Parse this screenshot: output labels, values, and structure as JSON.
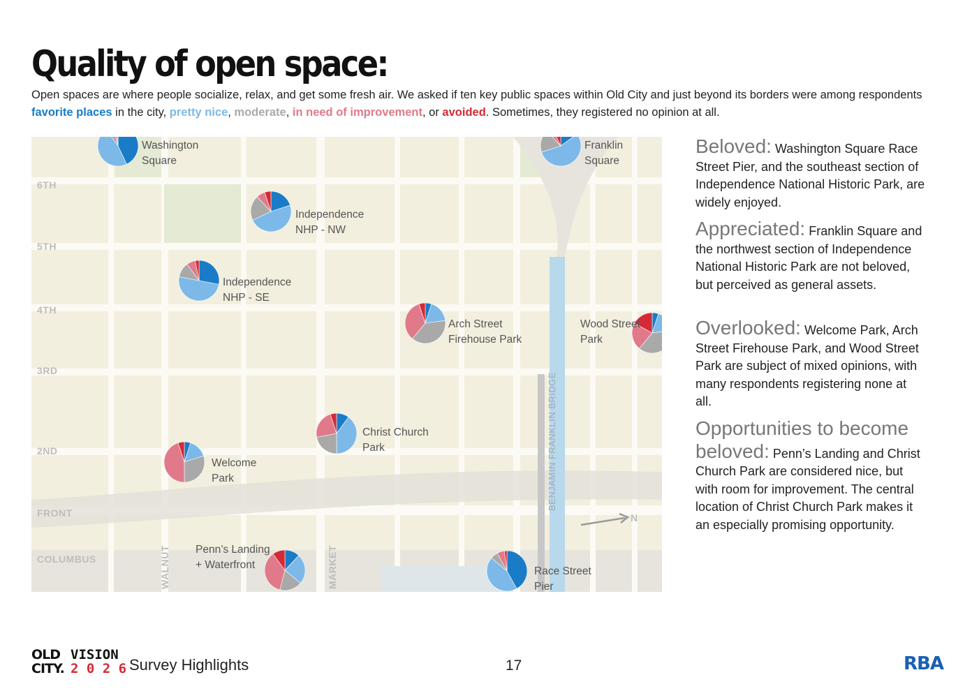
{
  "title": "Quality of open space:",
  "intro": {
    "before": "Open spaces are where people socialize, relax, and get some fresh air. We asked if ten key public spaces within Old City and just beyond its borders were among respondents ",
    "favorite": "favorite places",
    "sep1": " in the city, ",
    "nice": "pretty nice",
    "sep2": ", ",
    "moderate": "moderate",
    "sep3": ", ",
    "improvement": "in need of improvement",
    "sep4": ", or ",
    "avoided": "avoided",
    "after": ". Sometimes, they registered no opinion at all."
  },
  "colors": {
    "favorite": "#1a7cc7",
    "nice": "#7cb9e8",
    "moderate": "#a9a9a9",
    "improvement": "#e07a8a",
    "avoided": "#d42a36",
    "map_bg": "#f2efde"
  },
  "map": {
    "streets": [
      "6TH",
      "5TH",
      "4TH",
      "3RD",
      "2ND",
      "FRONT",
      "COLUMBUS"
    ],
    "vertical_streets": [
      "WALNUT",
      "MARKET"
    ],
    "bridge": "BENJAMIN FRANKLIN BRIDGE",
    "north": "N"
  },
  "chart_data": {
    "type": "pie",
    "categories": [
      "favorite places",
      "pretty nice",
      "moderate",
      "in need of improvement",
      "avoided"
    ],
    "pies": [
      {
        "name": "Washington Square",
        "lines": [
          "Washington",
          "Square"
        ],
        "values": [
          0.43,
          0.47,
          0.06,
          0.03,
          0.01
        ]
      },
      {
        "name": "Franklin Square",
        "lines": [
          "Franklin",
          "Square"
        ],
        "values": [
          0.15,
          0.55,
          0.18,
          0.05,
          0.07
        ]
      },
      {
        "name": "Independence NHP - NW",
        "lines": [
          "Independence",
          "NHP - NW"
        ],
        "values": [
          0.2,
          0.48,
          0.2,
          0.07,
          0.05
        ]
      },
      {
        "name": "Independence NHP - SE",
        "lines": [
          "Independence",
          "NHP - SE"
        ],
        "values": [
          0.28,
          0.5,
          0.12,
          0.07,
          0.03
        ]
      },
      {
        "name": "Arch Street Firehouse Park",
        "lines": [
          "Arch Street",
          "Firehouse Park"
        ],
        "values": [
          0.05,
          0.18,
          0.38,
          0.34,
          0.05
        ]
      },
      {
        "name": "Wood Street Park",
        "lines": [
          "Wood Street",
          "Park"
        ],
        "values": [
          0.05,
          0.18,
          0.38,
          0.22,
          0.17
        ]
      },
      {
        "name": "Christ Church Park",
        "lines": [
          "Christ Church",
          "Park"
        ],
        "values": [
          0.1,
          0.4,
          0.22,
          0.23,
          0.05
        ]
      },
      {
        "name": "Welcome Park",
        "lines": [
          "Welcome",
          "Park"
        ],
        "values": [
          0.05,
          0.15,
          0.3,
          0.45,
          0.05
        ]
      },
      {
        "name": "Penn's Landing + Waterfront",
        "lines": [
          "Penn’s Landing",
          "+ Waterfront"
        ],
        "values": [
          0.12,
          0.24,
          0.18,
          0.36,
          0.1
        ]
      },
      {
        "name": "Race Street Pier",
        "lines": [
          "Race Street",
          "Pier"
        ],
        "values": [
          0.42,
          0.44,
          0.06,
          0.06,
          0.02
        ]
      }
    ]
  },
  "sidebar": [
    {
      "heading": "Beloved:",
      "text": "Washington Square Race Street Pier, and the southeast section of Independence National Historic Park, are widely enjoyed."
    },
    {
      "heading": "Appreciated:",
      "text": "Franklin Square and the northwest section of Independence National Historic Park are not beloved, but perceived as general assets."
    },
    {
      "heading": "Overlooked:",
      "text": "Welcome Park, Arch Street Firehouse Park, and Wood Street Park are subject of mixed opinions, with many respondents registering none at all."
    },
    {
      "heading": "Opportunities to become beloved:",
      "text": "Penn’s Landing and Christ Church Park are considered nice, but with room for improvement. The central location of Christ Church Park makes it an especially promising opportunity."
    }
  ],
  "footer": {
    "logo_old": "OLD",
    "logo_city": "CITY.",
    "logo_vision": "VISION",
    "logo_year": "2 0 2 6",
    "subtitle": "Survey Highlights",
    "page": "17",
    "firm": "RBA"
  }
}
